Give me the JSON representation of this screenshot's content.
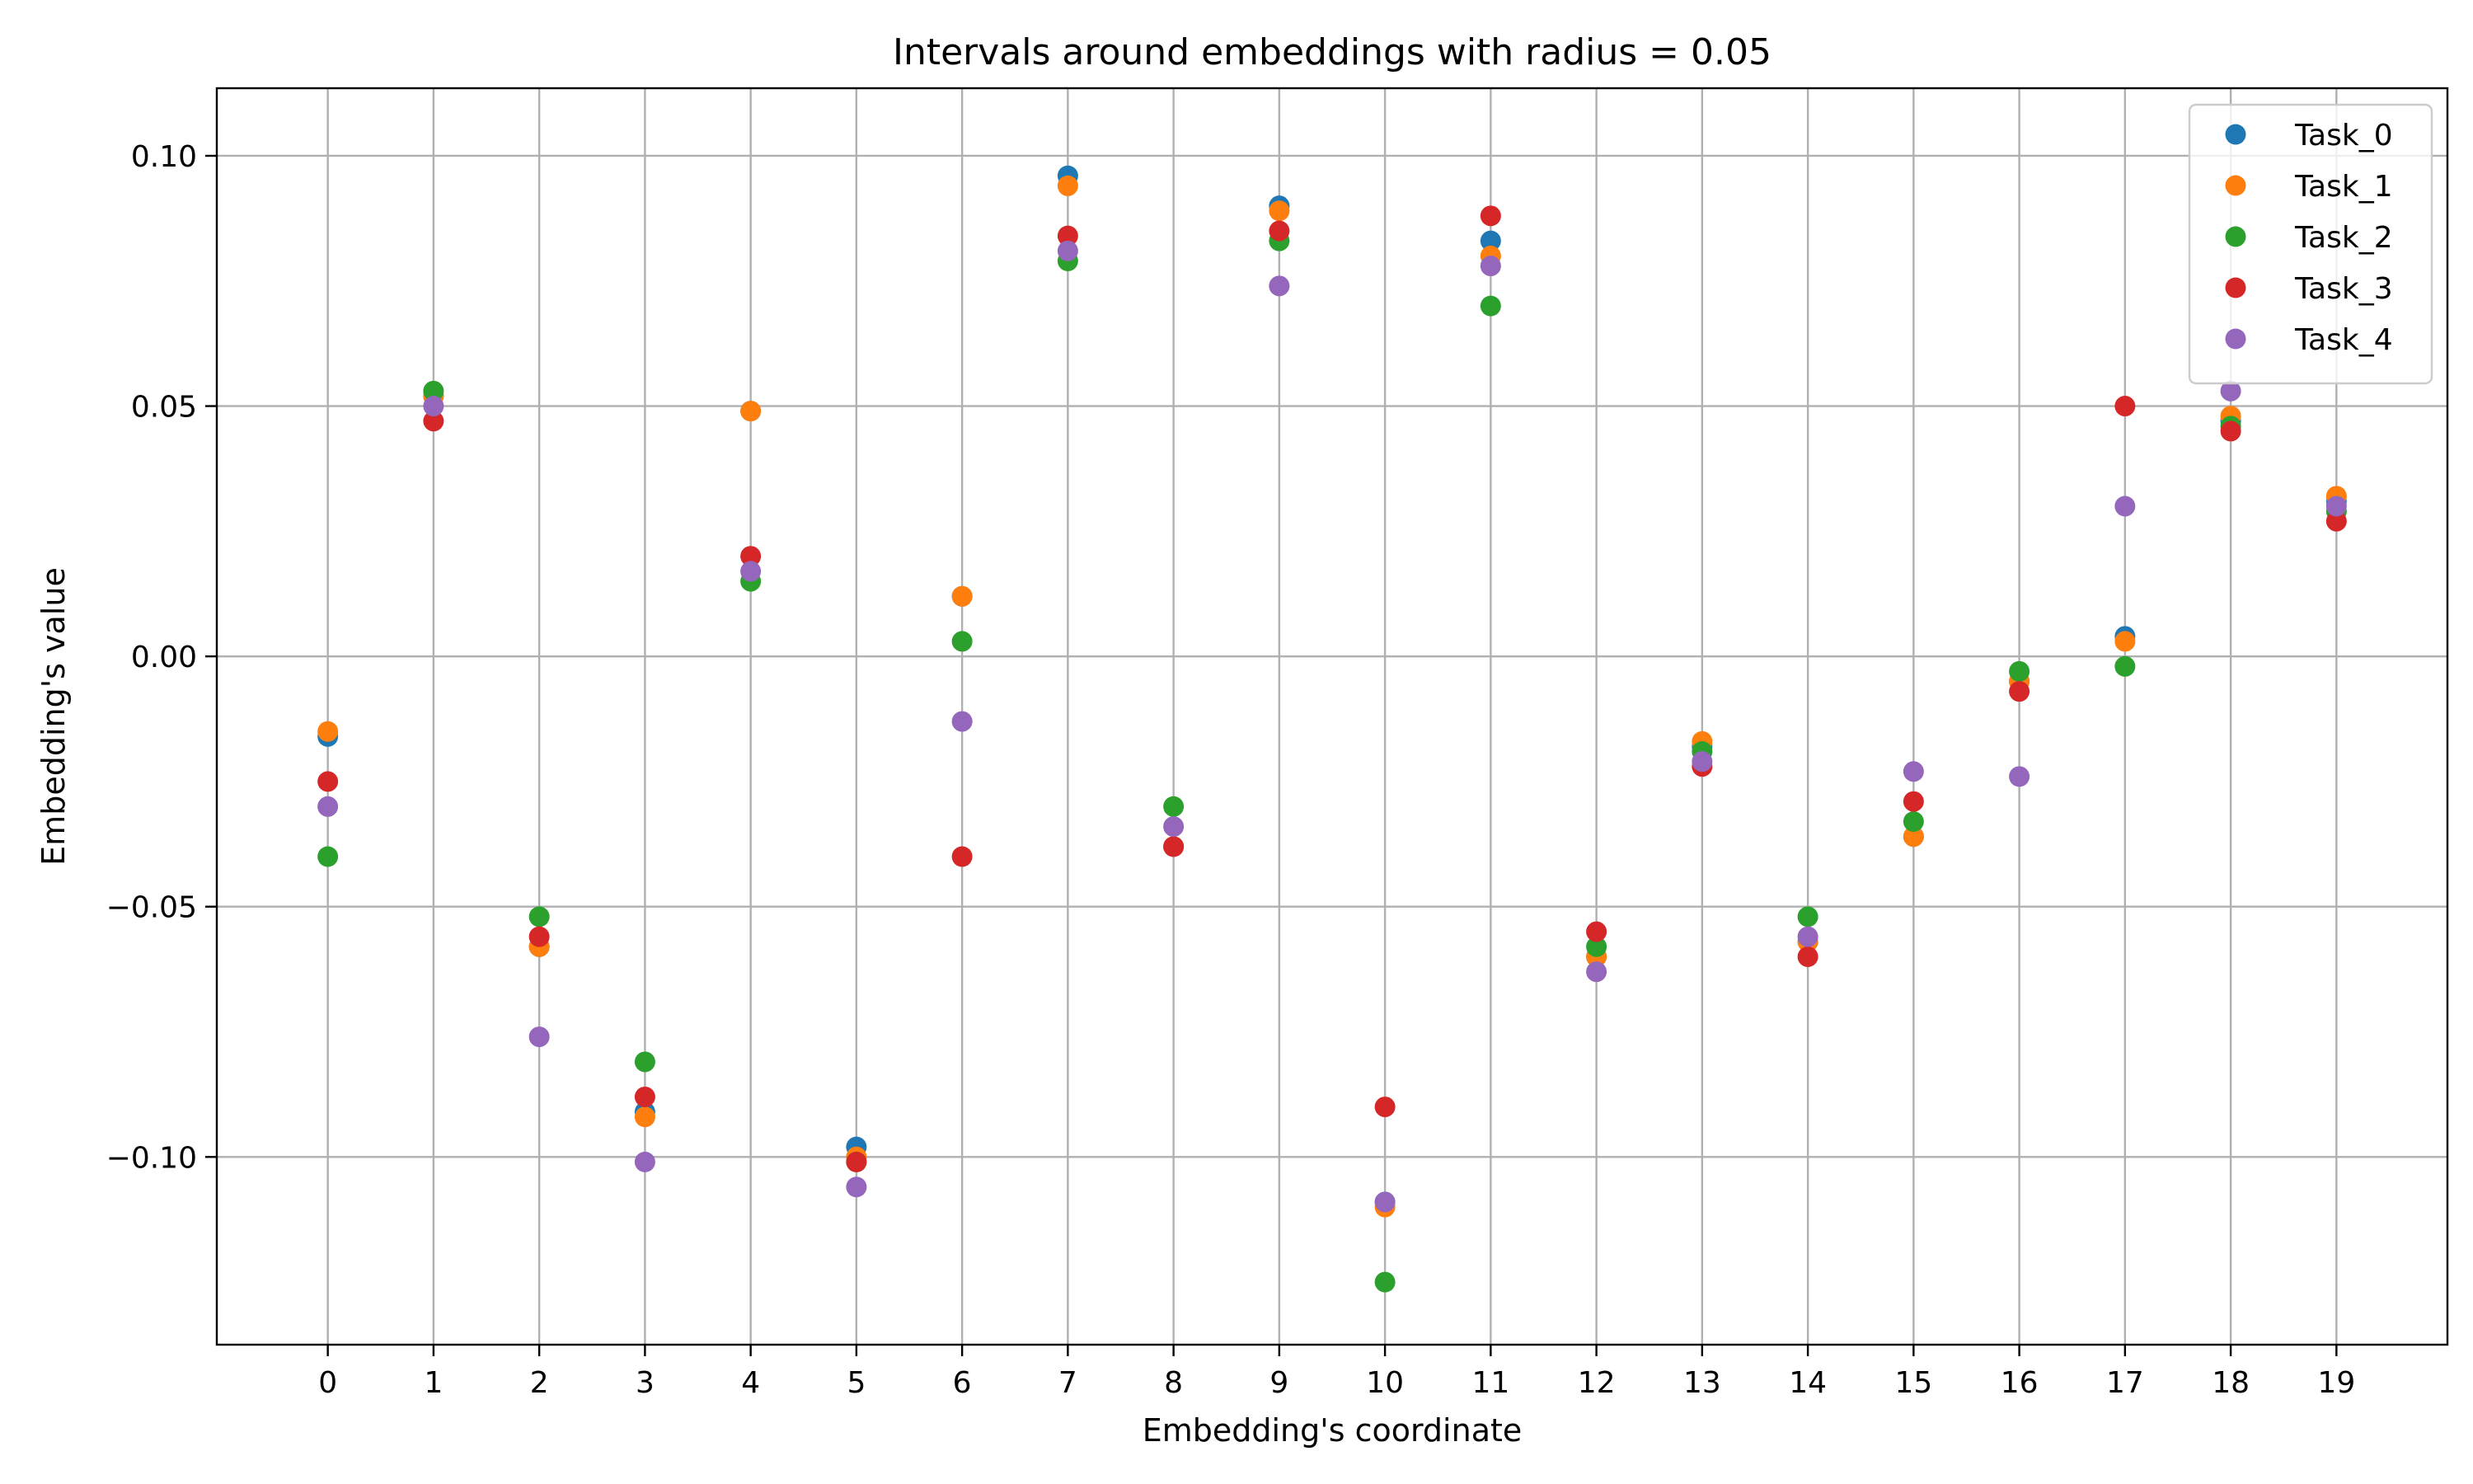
{
  "chart_data": {
    "type": "scatter",
    "title": "Intervals around embeddings with radius = 0.05",
    "xlabel": "Embedding's coordinate",
    "ylabel": "Embedding's value",
    "x": [
      0,
      1,
      2,
      3,
      4,
      5,
      6,
      7,
      8,
      9,
      10,
      11,
      12,
      13,
      14,
      15,
      16,
      17,
      18,
      19
    ],
    "xticks": [
      "0",
      "1",
      "2",
      "3",
      "4",
      "5",
      "6",
      "7",
      "8",
      "9",
      "10",
      "11",
      "12",
      "13",
      "14",
      "15",
      "16",
      "17",
      "18",
      "19"
    ],
    "yticks": [
      {
        "value": 0.1,
        "label": "0.10"
      },
      {
        "value": 0.05,
        "label": "0.05"
      },
      {
        "value": 0.0,
        "label": "0.00"
      },
      {
        "value": -0.05,
        "label": "−0.05"
      },
      {
        "value": -0.1,
        "label": "−0.10"
      }
    ],
    "xlim": [
      -1.05,
      20.05
    ],
    "ylim": [
      -0.1375,
      0.1135
    ],
    "grid": true,
    "legend_position": "top-right",
    "series": [
      {
        "name": "Task_0",
        "color": "#1f77b4",
        "values": [
          -0.016,
          0.052,
          -0.058,
          -0.091,
          0.049,
          -0.098,
          0.012,
          0.096,
          -0.038,
          0.09,
          -0.109,
          0.083,
          -0.06,
          -0.018,
          -0.057,
          -0.036,
          -0.005,
          0.004,
          0.047,
          0.031
        ]
      },
      {
        "name": "Task_1",
        "color": "#ff7f0e",
        "values": [
          -0.015,
          0.052,
          -0.058,
          -0.092,
          0.049,
          -0.1,
          0.012,
          0.094,
          -0.038,
          0.089,
          -0.11,
          0.08,
          -0.06,
          -0.017,
          -0.057,
          -0.036,
          -0.005,
          0.003,
          0.048,
          0.032
        ]
      },
      {
        "name": "Task_2",
        "color": "#2ca02c",
        "values": [
          -0.04,
          0.053,
          -0.052,
          -0.081,
          0.015,
          -0.101,
          0.003,
          0.079,
          -0.03,
          0.083,
          -0.125,
          0.07,
          -0.058,
          -0.019,
          -0.052,
          -0.033,
          -0.003,
          -0.002,
          0.046,
          0.029
        ]
      },
      {
        "name": "Task_3",
        "color": "#d62728",
        "values": [
          -0.025,
          0.047,
          -0.056,
          -0.088,
          0.02,
          -0.101,
          -0.04,
          0.084,
          -0.038,
          0.085,
          -0.09,
          0.088,
          -0.055,
          -0.022,
          -0.06,
          -0.029,
          -0.007,
          0.05,
          0.045,
          0.027
        ]
      },
      {
        "name": "Task_4",
        "color": "#9467bd",
        "values": [
          -0.03,
          0.05,
          -0.076,
          -0.101,
          0.017,
          -0.106,
          -0.013,
          0.081,
          -0.034,
          0.074,
          -0.109,
          0.078,
          -0.063,
          -0.021,
          -0.056,
          -0.023,
          -0.024,
          0.03,
          0.053,
          0.03
        ]
      }
    ]
  }
}
